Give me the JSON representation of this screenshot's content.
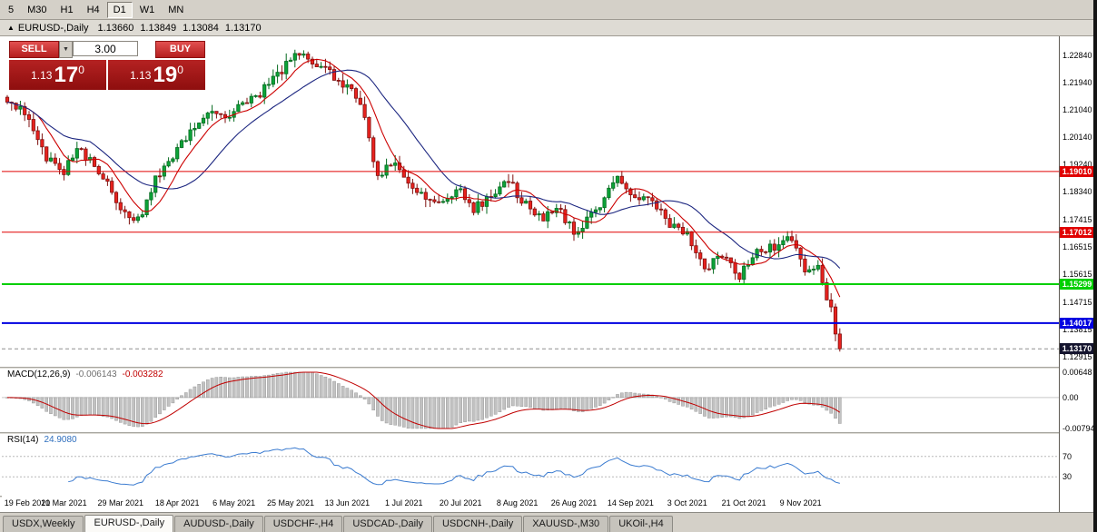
{
  "toolbar": {
    "periods": [
      {
        "label": "5",
        "active": false
      },
      {
        "label": "M30",
        "active": false
      },
      {
        "label": "H1",
        "active": false
      },
      {
        "label": "H4",
        "active": false
      },
      {
        "label": "D1",
        "active": true
      },
      {
        "label": "W1",
        "active": false
      },
      {
        "label": "MN",
        "active": false
      }
    ]
  },
  "chart_header": {
    "marker": "▲",
    "title": "EURUSD-,Daily",
    "open": "1.13660",
    "high": "1.13849",
    "low": "1.13084",
    "close": "1.13170"
  },
  "trade_panel": {
    "sell_label": "SELL",
    "buy_label": "BUY",
    "volume": "3.00",
    "spinner_down": "▼",
    "bid": {
      "prefix": "1.13",
      "big": "17",
      "sup": "0"
    },
    "ask": {
      "prefix": "1.13",
      "big": "19",
      "sup": "0"
    }
  },
  "price_axis": {
    "labels": [
      "1.22840",
      "1.21940",
      "1.21040",
      "1.20140",
      "1.19240",
      "1.18340",
      "1.17415",
      "1.16515",
      "1.15615",
      "1.14715",
      "1.13815",
      "1.12915"
    ]
  },
  "levels": [
    {
      "price": 1.1901,
      "label": "1.19010",
      "color": "#e00000",
      "thickness": 1,
      "style": "solid"
    },
    {
      "price": 1.17012,
      "label": "1.17012",
      "color": "#e00000",
      "thickness": 1,
      "style": "solid"
    },
    {
      "price": 1.15299,
      "label": "1.15299",
      "color": "#00cf00",
      "thickness": 2,
      "style": "solid"
    },
    {
      "price": 1.14017,
      "label": "1.14017",
      "color": "#0000e0",
      "thickness": 2,
      "style": "solid"
    },
    {
      "price": 1.1317,
      "label": "1.13170",
      "color": "#909090",
      "thickness": 1,
      "style": "dashed",
      "tag": "#14142e"
    }
  ],
  "macd": {
    "name": "MACD(12,26,9)",
    "value_main": "-0.006143",
    "value_signal": "-0.003282",
    "axis_labels": [
      "0.00648",
      "0.00",
      "-0.00794"
    ],
    "vmax": 0.00648,
    "vmin": -0.00794
  },
  "rsi": {
    "name": "RSI(14)",
    "value": "24.9080",
    "level_labels": [
      "70",
      "30"
    ],
    "levels": [
      70,
      30
    ]
  },
  "date_ticks": [
    {
      "i": 0,
      "label": "19 Feb 2021"
    },
    {
      "i": 13,
      "label": "10 Mar 2021"
    },
    {
      "i": 26,
      "label": "29 Mar 2021"
    },
    {
      "i": 39,
      "label": "18 Apr 2021"
    },
    {
      "i": 52,
      "label": "6 May 2021"
    },
    {
      "i": 65,
      "label": "25 May 2021"
    },
    {
      "i": 78,
      "label": "13 Jun 2021"
    },
    {
      "i": 91,
      "label": "1 Jul 2021"
    },
    {
      "i": 104,
      "label": "20 Jul 2021"
    },
    {
      "i": 117,
      "label": "8 Aug 2021"
    },
    {
      "i": 130,
      "label": "26 Aug 2021"
    },
    {
      "i": 143,
      "label": "14 Sep 2021"
    },
    {
      "i": 156,
      "label": "3 Oct 2021"
    },
    {
      "i": 169,
      "label": "21 Oct 2021"
    },
    {
      "i": 182,
      "label": "9 Nov 2021"
    }
  ],
  "tabs": [
    {
      "label": "USDX,Weekly",
      "active": false
    },
    {
      "label": "EURUSD-,Daily",
      "active": true
    },
    {
      "label": "AUDUSD-,Daily",
      "active": false
    },
    {
      "label": "USDCHF-,H4",
      "active": false
    },
    {
      "label": "USDCAD-,Daily",
      "active": false
    },
    {
      "label": "USDCNH-,Daily",
      "active": false
    },
    {
      "label": "XAUUSD-,M30",
      "active": false
    },
    {
      "label": "UKOil-,H4",
      "active": false
    }
  ],
  "colors": {
    "candle_up": "#0ba338",
    "candle_up_line": "#046a1e",
    "candle_down": "#e8221e",
    "candle_down_line": "#801210",
    "ma_fast": "#cc0000",
    "ma_slow": "#1c2680",
    "macd_hist": "#c2c2c2",
    "macd_hist_edge": "#8e8e8e",
    "macd_signal": "#c00000",
    "rsi_line": "#3a7bd0"
  },
  "chart_data": {
    "type": "candlestick",
    "title": "EURUSD- Daily with MACD(12,26,9) and RSI(14)",
    "n_candles": 192,
    "candle_spacing_px": 4.8,
    "y_axis": {
      "top_price": 1.234,
      "bottom_price": 1.127
    },
    "close_anchors": [
      [
        0,
        1.212
      ],
      [
        3,
        1.2105
      ],
      [
        6,
        1.2038
      ],
      [
        9,
        1.194
      ],
      [
        13,
        1.1905
      ],
      [
        16,
        1.1985
      ],
      [
        19,
        1.1935
      ],
      [
        23,
        1.186
      ],
      [
        26,
        1.1785
      ],
      [
        29,
        1.173
      ],
      [
        31,
        1.1772
      ],
      [
        34,
        1.1875
      ],
      [
        38,
        1.195
      ],
      [
        42,
        1.204
      ],
      [
        46,
        1.2105
      ],
      [
        50,
        1.2065
      ],
      [
        54,
        1.2125
      ],
      [
        58,
        1.216
      ],
      [
        62,
        1.222
      ],
      [
        66,
        1.228
      ],
      [
        68,
        1.23
      ],
      [
        70,
        1.225
      ],
      [
        74,
        1.2225
      ],
      [
        78,
        1.218
      ],
      [
        81,
        1.212
      ],
      [
        83,
        1.2015
      ],
      [
        85,
        1.188
      ],
      [
        88,
        1.1935
      ],
      [
        92,
        1.186
      ],
      [
        96,
        1.181
      ],
      [
        100,
        1.179
      ],
      [
        104,
        1.1842
      ],
      [
        107,
        1.178
      ],
      [
        111,
        1.1815
      ],
      [
        115,
        1.1868
      ],
      [
        119,
        1.179
      ],
      [
        123,
        1.1737
      ],
      [
        126,
        1.1792
      ],
      [
        130,
        1.17
      ],
      [
        134,
        1.1752
      ],
      [
        138,
        1.1842
      ],
      [
        140,
        1.1885
      ],
      [
        144,
        1.1818
      ],
      [
        148,
        1.1812
      ],
      [
        152,
        1.173
      ],
      [
        156,
        1.1692
      ],
      [
        160,
        1.1582
      ],
      [
        164,
        1.1622
      ],
      [
        168,
        1.1557
      ],
      [
        172,
        1.164
      ],
      [
        176,
        1.1652
      ],
      [
        180,
        1.1688
      ],
      [
        183,
        1.1582
      ],
      [
        186,
        1.1592
      ],
      [
        188,
        1.1478
      ],
      [
        189,
        1.1455
      ],
      [
        190,
        1.1366
      ],
      [
        191,
        1.1317
      ]
    ],
    "last_candle": {
      "o": 1.1366,
      "h": 1.13849,
      "l": 1.13084,
      "c": 1.1317
    },
    "indicators": {
      "ma_fast_period": 8,
      "ma_slow_period": 20,
      "macd": [
        12,
        26,
        9
      ],
      "rsi": 14
    },
    "horizontal_levels": [
      1.1901,
      1.17012,
      1.15299,
      1.14017,
      1.1317
    ]
  }
}
